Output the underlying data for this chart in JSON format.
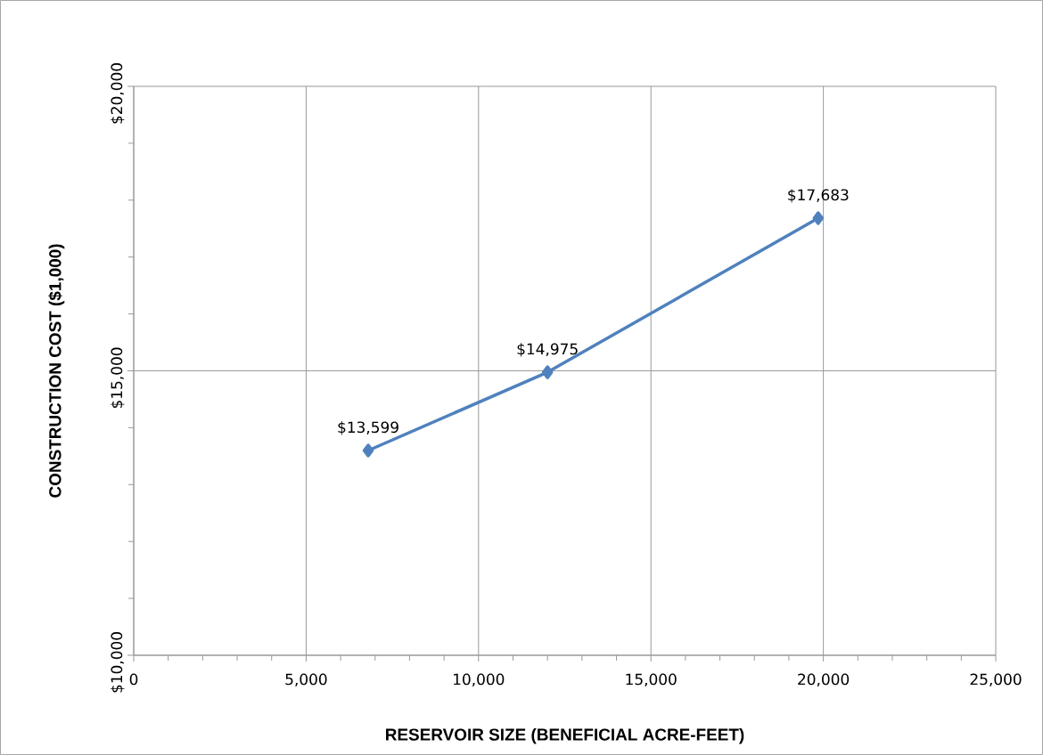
{
  "chart_data": {
    "type": "line",
    "xlabel": "RESERVOIR SIZE (BENEFICIAL ACRE-FEET)",
    "ylabel": "CONSTRUCTION COST ($1,000)",
    "x": [
      6800,
      12000,
      19850
    ],
    "series": [
      {
        "color": "#4f81bd",
        "values": [
          13599,
          14975,
          17683
        ],
        "value_labels": [
          "$13,599",
          "$14,975",
          "$17,683"
        ]
      }
    ],
    "marker": "diamond",
    "line_style": "solid",
    "grid": true,
    "xlim": [
      0,
      25000
    ],
    "ylim": [
      10000,
      20000
    ],
    "xticks": [
      0,
      {
        "value": 1000,
        "label": null
      },
      {
        "value": 2000,
        "label": null
      },
      {
        "value": 3000,
        "label": null
      },
      {
        "value": 4000,
        "label": null
      },
      {
        "value": 5000,
        "label": "5,000"
      },
      {
        "value": 6000,
        "label": null
      },
      {
        "value": 7000,
        "label": null
      },
      {
        "value": 8000,
        "label": null
      },
      {
        "value": 9000,
        "label": null
      },
      {
        "value": 10000,
        "label": "10,000"
      },
      {
        "value": 11000,
        "label": null
      },
      {
        "value": 12000,
        "label": null
      },
      {
        "value": 13000,
        "label": null
      },
      {
        "value": 14000,
        "label": null
      },
      {
        "value": 15000,
        "label": "15,000"
      },
      {
        "value": 16000,
        "label": null
      },
      {
        "value": 17000,
        "label": null
      },
      {
        "value": 18000,
        "label": null
      },
      {
        "value": 19000,
        "label": null
      },
      {
        "value": 20000,
        "label": "20,000"
      },
      {
        "value": 21000,
        "label": null
      },
      {
        "value": 22000,
        "label": null
      },
      {
        "value": 23000,
        "label": null
      },
      {
        "value": 24000,
        "label": null
      },
      {
        "value": 25000,
        "label": "25,000"
      }
    ],
    "yticks": [
      {
        "value": 10000,
        "label": "$10,000"
      },
      {
        "value": 11000,
        "label": null
      },
      {
        "value": 12000,
        "label": null
      },
      {
        "value": 13000,
        "label": null
      },
      {
        "value": 14000,
        "label": null
      },
      {
        "value": 15000,
        "label": "$15,000"
      },
      {
        "value": 16000,
        "label": null
      },
      {
        "value": 17000,
        "label": null
      },
      {
        "value": 18000,
        "label": null
      },
      {
        "value": 19000,
        "label": null
      },
      {
        "value": 20000,
        "label": "$20,000"
      }
    ]
  }
}
